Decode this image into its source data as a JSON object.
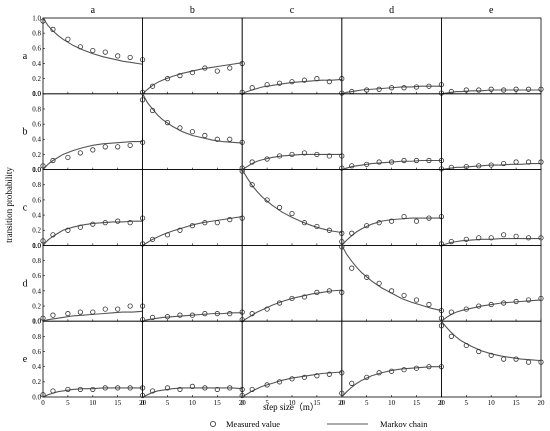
{
  "chart_data": {
    "type": "scatter",
    "layout": "5x5 grid of small multiples",
    "xlabel": "step size（m）",
    "ylabel": "transition probability",
    "col_labels": [
      "a",
      "b",
      "c",
      "d",
      "e"
    ],
    "row_labels": [
      "a",
      "b",
      "c",
      "d",
      "e"
    ],
    "xlim": [
      0,
      20
    ],
    "ylim": [
      0,
      1.0
    ],
    "x_ticks": [
      0,
      5,
      10,
      15,
      20
    ],
    "y_ticks": [
      "0.0",
      "0.2",
      "0.4",
      "0.6",
      "0.8",
      "1.0"
    ],
    "x_tick_labels": [
      "0",
      "5",
      "10",
      "15",
      "20"
    ],
    "legend": {
      "placement": "bottom-center",
      "entries": [
        {
          "marker": "circle",
          "label": "Measured value"
        },
        {
          "marker": "line",
          "label": "Markov chain"
        }
      ]
    },
    "colors": {
      "line": "#555555",
      "marker": "#333333",
      "frame": "#000000"
    },
    "measured_x": [
      0,
      2,
      5,
      7.5,
      10,
      12.5,
      15,
      17.5,
      20
    ],
    "model_x": [
      0,
      1,
      2,
      3,
      4,
      6,
      8,
      10,
      12,
      14,
      16,
      18,
      20
    ],
    "panels": [
      [
        {
          "row": "a",
          "col": "a",
          "measured": [
            0.96,
            0.85,
            0.72,
            0.62,
            0.57,
            0.55,
            0.5,
            0.48,
            0.45
          ],
          "model": [
            1.0,
            0.9,
            0.83,
            0.77,
            0.72,
            0.64,
            0.58,
            0.53,
            0.49,
            0.46,
            0.43,
            0.41,
            0.39
          ]
        },
        {
          "row": "a",
          "col": "b",
          "measured": [
            0.02,
            0.1,
            0.2,
            0.24,
            0.28,
            0.34,
            0.3,
            0.34,
            0.4
          ],
          "model": [
            0.0,
            0.06,
            0.11,
            0.15,
            0.18,
            0.23,
            0.27,
            0.3,
            0.33,
            0.35,
            0.37,
            0.39,
            0.41
          ]
        },
        {
          "row": "a",
          "col": "c",
          "measured": [
            0.02,
            0.08,
            0.12,
            0.14,
            0.16,
            0.18,
            0.2,
            0.16,
            0.2
          ],
          "model": [
            0.0,
            0.03,
            0.05,
            0.07,
            0.09,
            0.11,
            0.13,
            0.15,
            0.16,
            0.17,
            0.18,
            0.18,
            0.19
          ]
        },
        {
          "row": "a",
          "col": "d",
          "measured": [
            0.01,
            0.03,
            0.05,
            0.06,
            0.08,
            0.08,
            0.09,
            0.1,
            0.12
          ],
          "model": [
            0.0,
            0.02,
            0.03,
            0.04,
            0.05,
            0.06,
            0.07,
            0.08,
            0.09,
            0.09,
            0.1,
            0.1,
            0.1
          ]
        },
        {
          "row": "a",
          "col": "e",
          "measured": [
            0.01,
            0.03,
            0.05,
            0.05,
            0.06,
            0.05,
            0.06,
            0.06,
            0.06
          ],
          "model": [
            0.0,
            0.01,
            0.02,
            0.03,
            0.03,
            0.04,
            0.04,
            0.05,
            0.05,
            0.05,
            0.05,
            0.05,
            0.05
          ]
        }
      ],
      [
        {
          "row": "b",
          "col": "a",
          "measured": [
            0.05,
            0.12,
            0.16,
            0.22,
            0.26,
            0.3,
            0.3,
            0.32,
            0.36
          ],
          "model": [
            0.0,
            0.07,
            0.12,
            0.16,
            0.2,
            0.25,
            0.29,
            0.32,
            0.34,
            0.35,
            0.36,
            0.37,
            0.37
          ]
        },
        {
          "row": "b",
          "col": "b",
          "measured": [
            0.92,
            0.78,
            0.62,
            0.55,
            0.5,
            0.45,
            0.4,
            0.4,
            0.36
          ],
          "model": [
            1.0,
            0.88,
            0.8,
            0.72,
            0.66,
            0.57,
            0.5,
            0.45,
            0.42,
            0.39,
            0.37,
            0.36,
            0.35
          ]
        },
        {
          "row": "b",
          "col": "c",
          "measured": [
            0.02,
            0.1,
            0.14,
            0.18,
            0.2,
            0.22,
            0.2,
            0.18,
            0.18
          ],
          "model": [
            0.0,
            0.04,
            0.08,
            0.11,
            0.13,
            0.16,
            0.18,
            0.19,
            0.2,
            0.2,
            0.2,
            0.2,
            0.2
          ]
        },
        {
          "row": "b",
          "col": "d",
          "measured": [
            0.02,
            0.05,
            0.07,
            0.1,
            0.1,
            0.12,
            0.12,
            0.12,
            0.12
          ],
          "model": [
            0.0,
            0.02,
            0.04,
            0.05,
            0.06,
            0.08,
            0.09,
            0.1,
            0.11,
            0.11,
            0.12,
            0.12,
            0.12
          ]
        },
        {
          "row": "b",
          "col": "e",
          "measured": [
            0.01,
            0.03,
            0.04,
            0.05,
            0.06,
            0.08,
            0.1,
            0.1,
            0.1
          ],
          "model": [
            0.0,
            0.01,
            0.02,
            0.03,
            0.03,
            0.04,
            0.05,
            0.06,
            0.06,
            0.07,
            0.07,
            0.08,
            0.08
          ]
        }
      ],
      [
        {
          "row": "c",
          "col": "a",
          "measured": [
            0.06,
            0.14,
            0.2,
            0.24,
            0.28,
            0.3,
            0.32,
            0.3,
            0.36
          ],
          "model": [
            0.0,
            0.07,
            0.12,
            0.16,
            0.2,
            0.24,
            0.27,
            0.29,
            0.3,
            0.31,
            0.31,
            0.32,
            0.32
          ]
        },
        {
          "row": "c",
          "col": "b",
          "measured": [
            0.02,
            0.08,
            0.14,
            0.2,
            0.26,
            0.3,
            0.3,
            0.34,
            0.36
          ],
          "model": [
            0.0,
            0.04,
            0.08,
            0.11,
            0.14,
            0.19,
            0.23,
            0.27,
            0.3,
            0.32,
            0.34,
            0.36,
            0.38
          ]
        },
        {
          "row": "c",
          "col": "c",
          "measured": [
            0.98,
            0.8,
            0.6,
            0.5,
            0.42,
            0.3,
            0.25,
            0.2,
            0.16
          ],
          "model": [
            1.0,
            0.89,
            0.79,
            0.71,
            0.64,
            0.53,
            0.44,
            0.37,
            0.31,
            0.26,
            0.22,
            0.19,
            0.17
          ]
        },
        {
          "row": "c",
          "col": "d",
          "measured": [
            0.05,
            0.16,
            0.26,
            0.3,
            0.32,
            0.38,
            0.32,
            0.36,
            0.38
          ],
          "model": [
            0.0,
            0.07,
            0.13,
            0.18,
            0.22,
            0.28,
            0.32,
            0.34,
            0.35,
            0.36,
            0.36,
            0.36,
            0.36
          ]
        },
        {
          "row": "c",
          "col": "e",
          "measured": [
            0.02,
            0.05,
            0.08,
            0.1,
            0.1,
            0.14,
            0.12,
            0.1,
            0.1
          ],
          "model": [
            0.0,
            0.02,
            0.04,
            0.05,
            0.06,
            0.07,
            0.08,
            0.08,
            0.09,
            0.09,
            0.09,
            0.09,
            0.09
          ]
        }
      ],
      [
        {
          "row": "d",
          "col": "a",
          "measured": [
            0.04,
            0.08,
            0.1,
            0.12,
            0.12,
            0.16,
            0.16,
            0.2,
            0.2
          ],
          "model": [
            0.0,
            0.02,
            0.03,
            0.04,
            0.05,
            0.07,
            0.08,
            0.09,
            0.1,
            0.11,
            0.12,
            0.12,
            0.13
          ]
        },
        {
          "row": "d",
          "col": "b",
          "measured": [
            0.02,
            0.05,
            0.06,
            0.08,
            0.08,
            0.1,
            0.1,
            0.1,
            0.12
          ],
          "model": [
            0.0,
            0.02,
            0.03,
            0.04,
            0.05,
            0.06,
            0.07,
            0.08,
            0.09,
            0.1,
            0.1,
            0.11,
            0.11
          ]
        },
        {
          "row": "d",
          "col": "c",
          "measured": [
            0.02,
            0.1,
            0.16,
            0.24,
            0.3,
            0.32,
            0.38,
            0.4,
            0.38
          ],
          "model": [
            0.0,
            0.04,
            0.08,
            0.12,
            0.15,
            0.21,
            0.26,
            0.3,
            0.33,
            0.36,
            0.38,
            0.4,
            0.41
          ]
        },
        {
          "row": "d",
          "col": "d",
          "measured": [
            0.98,
            0.7,
            0.58,
            0.5,
            0.4,
            0.34,
            0.28,
            0.22,
            0.14
          ],
          "model": [
            1.0,
            0.88,
            0.79,
            0.71,
            0.64,
            0.53,
            0.44,
            0.37,
            0.3,
            0.25,
            0.21,
            0.17,
            0.14
          ]
        },
        {
          "row": "d",
          "col": "e",
          "measured": [
            0.04,
            0.12,
            0.16,
            0.2,
            0.22,
            0.24,
            0.26,
            0.28,
            0.3
          ],
          "model": [
            0.0,
            0.05,
            0.09,
            0.12,
            0.14,
            0.17,
            0.2,
            0.22,
            0.24,
            0.25,
            0.26,
            0.27,
            0.28
          ]
        }
      ],
      [
        {
          "row": "e",
          "col": "a",
          "measured": [
            0.03,
            0.08,
            0.1,
            0.1,
            0.1,
            0.12,
            0.12,
            0.12,
            0.12
          ],
          "model": [
            0.0,
            0.03,
            0.05,
            0.07,
            0.08,
            0.1,
            0.11,
            0.11,
            0.12,
            0.12,
            0.12,
            0.12,
            0.12
          ]
        },
        {
          "row": "e",
          "col": "b",
          "measured": [
            0.02,
            0.08,
            0.12,
            0.1,
            0.14,
            0.12,
            0.1,
            0.12,
            0.1
          ],
          "model": [
            0.0,
            0.03,
            0.06,
            0.08,
            0.09,
            0.11,
            0.12,
            0.12,
            0.12,
            0.12,
            0.12,
            0.12,
            0.11
          ]
        },
        {
          "row": "e",
          "col": "c",
          "measured": [
            0.02,
            0.1,
            0.16,
            0.2,
            0.24,
            0.26,
            0.28,
            0.3,
            0.32
          ],
          "model": [
            0.0,
            0.04,
            0.08,
            0.11,
            0.14,
            0.18,
            0.22,
            0.25,
            0.27,
            0.29,
            0.31,
            0.32,
            0.33
          ]
        },
        {
          "row": "e",
          "col": "d",
          "measured": [
            0.05,
            0.18,
            0.26,
            0.32,
            0.34,
            0.36,
            0.38,
            0.4,
            0.4
          ],
          "model": [
            0.0,
            0.07,
            0.13,
            0.18,
            0.22,
            0.28,
            0.32,
            0.35,
            0.37,
            0.38,
            0.39,
            0.4,
            0.4
          ]
        },
        {
          "row": "e",
          "col": "e",
          "measured": [
            0.94,
            0.8,
            0.68,
            0.6,
            0.55,
            0.5,
            0.5,
            0.46,
            0.46
          ],
          "model": [
            1.0,
            0.92,
            0.85,
            0.79,
            0.74,
            0.67,
            0.61,
            0.57,
            0.54,
            0.52,
            0.5,
            0.49,
            0.48
          ]
        }
      ]
    ]
  }
}
